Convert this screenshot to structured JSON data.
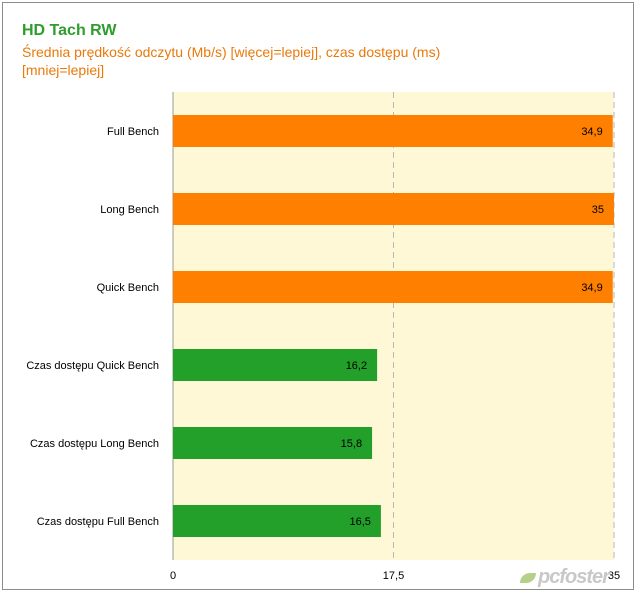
{
  "chart_data": {
    "type": "bar",
    "orientation": "horizontal",
    "title": "HD Tach RW",
    "subtitle": "Średnia prędkość odczytu (Mb/s) [więcej=lepiej], czas dostępu (ms) [mniej=lepiej]",
    "categories": [
      "Full Bench",
      "Long Bench",
      "Quick Bench",
      "Czas dostępu Quick Bench",
      "Czas dostępu Long Bench",
      "Czas dostępu Full Bench"
    ],
    "values": [
      34.9,
      35,
      34.9,
      16.2,
      15.8,
      16.5
    ],
    "value_labels": [
      "34,9",
      "35",
      "34,9",
      "16,2",
      "15,8",
      "16,5"
    ],
    "bar_colors": [
      "#ff8000",
      "#ff8000",
      "#ff8000",
      "#22a02a",
      "#22a02a",
      "#22a02a"
    ],
    "xlim": [
      0,
      35
    ],
    "xticks": [
      0,
      17.5,
      35
    ],
    "xtick_labels": [
      "0",
      "17,5",
      "35"
    ],
    "grid": true,
    "plot_background": "#fff8d6"
  },
  "watermark": "pcfoster"
}
